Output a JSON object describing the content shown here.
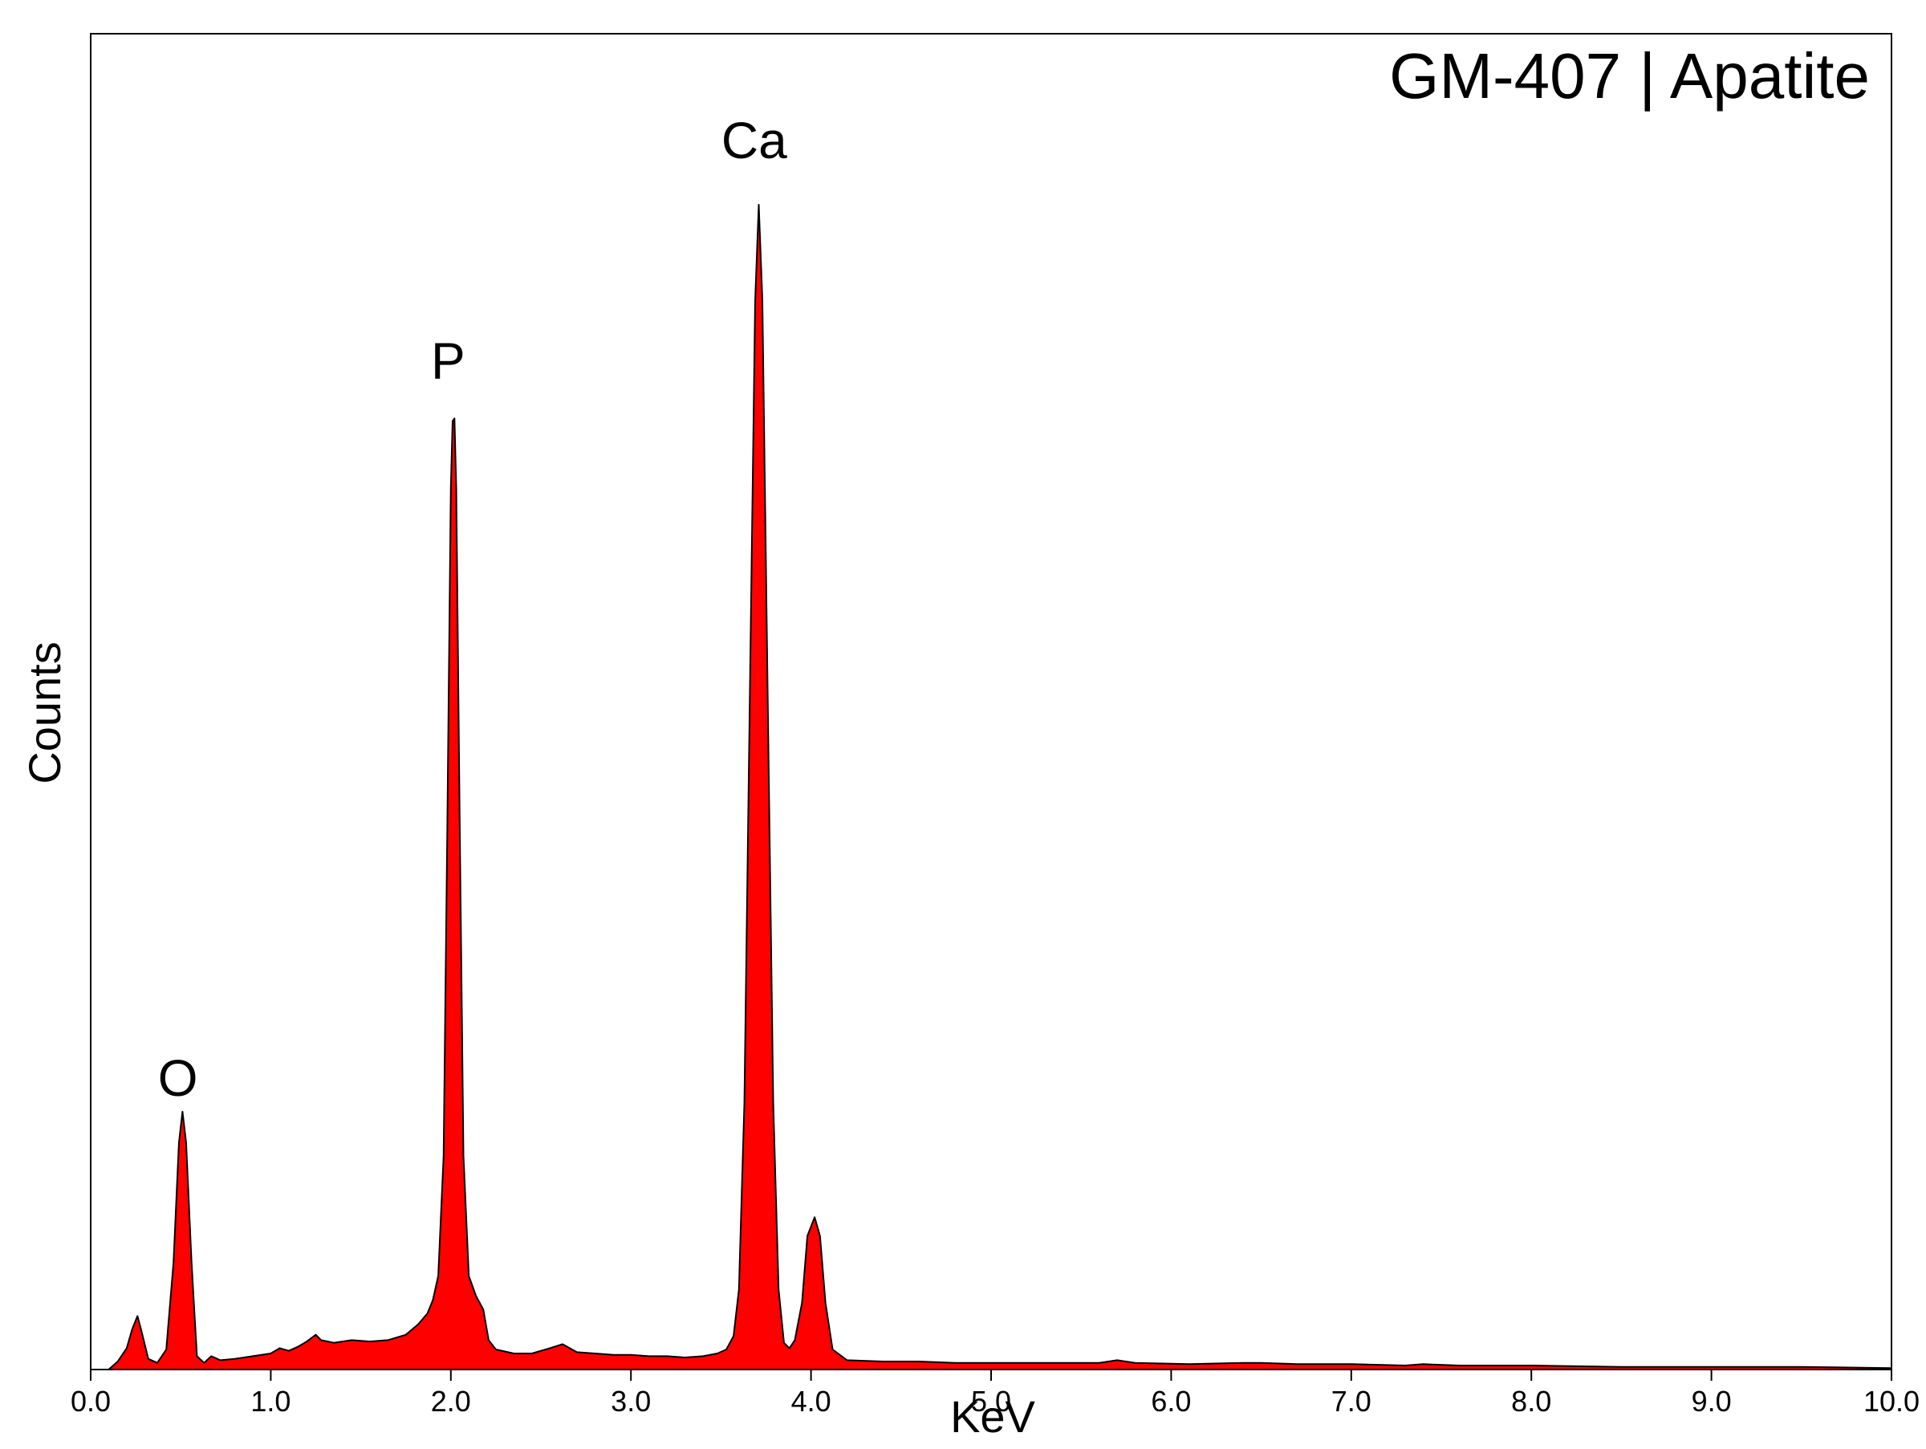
{
  "chart_data": {
    "type": "area",
    "title": "GM-407 | Apatite",
    "xlabel": "KeV",
    "ylabel": "Counts",
    "xlim": [
      0,
      10
    ],
    "ylim": [
      0,
      1000
    ],
    "x_ticks": [
      "0.0",
      "1.0",
      "2.0",
      "3.0",
      "4.0",
      "5.0",
      "6.0",
      "7.0",
      "8.0",
      "9.0",
      "10.0"
    ],
    "y_tick_labels_shown": false,
    "grid": false,
    "fill_color": "#ff0000",
    "line_color": "#000000",
    "peak_labels": [
      {
        "text": "O",
        "x": 0.52,
        "y": 205
      },
      {
        "text": "P",
        "x": 2.02,
        "y": 742
      },
      {
        "text": "Ca",
        "x": 3.72,
        "y": 907
      }
    ],
    "series": [
      {
        "points": [
          [
            0.1,
            0
          ],
          [
            0.15,
            6
          ],
          [
            0.2,
            16
          ],
          [
            0.23,
            30
          ],
          [
            0.26,
            40
          ],
          [
            0.28,
            30
          ],
          [
            0.32,
            8
          ],
          [
            0.37,
            5
          ],
          [
            0.42,
            15
          ],
          [
            0.46,
            80
          ],
          [
            0.49,
            170
          ],
          [
            0.51,
            193
          ],
          [
            0.53,
            170
          ],
          [
            0.56,
            80
          ],
          [
            0.59,
            10
          ],
          [
            0.63,
            5
          ],
          [
            0.67,
            10
          ],
          [
            0.72,
            7
          ],
          [
            0.8,
            8
          ],
          [
            0.9,
            10
          ],
          [
            1.0,
            12
          ],
          [
            1.05,
            16
          ],
          [
            1.1,
            14
          ],
          [
            1.15,
            17
          ],
          [
            1.2,
            21
          ],
          [
            1.25,
            26
          ],
          [
            1.28,
            22
          ],
          [
            1.35,
            20
          ],
          [
            1.45,
            22
          ],
          [
            1.55,
            21
          ],
          [
            1.65,
            22
          ],
          [
            1.75,
            26
          ],
          [
            1.82,
            34
          ],
          [
            1.87,
            42
          ],
          [
            1.9,
            52
          ],
          [
            1.93,
            70
          ],
          [
            1.96,
            160
          ],
          [
            1.98,
            400
          ],
          [
            2.0,
            660
          ],
          [
            2.01,
            710
          ],
          [
            2.02,
            712
          ],
          [
            2.03,
            660
          ],
          [
            2.05,
            400
          ],
          [
            2.07,
            160
          ],
          [
            2.1,
            70
          ],
          [
            2.14,
            55
          ],
          [
            2.18,
            45
          ],
          [
            2.21,
            22
          ],
          [
            2.25,
            15
          ],
          [
            2.35,
            12
          ],
          [
            2.45,
            12
          ],
          [
            2.55,
            16
          ],
          [
            2.62,
            19
          ],
          [
            2.7,
            13
          ],
          [
            2.8,
            12
          ],
          [
            2.9,
            11
          ],
          [
            3.0,
            11
          ],
          [
            3.1,
            10
          ],
          [
            3.2,
            10
          ],
          [
            3.3,
            9
          ],
          [
            3.4,
            10
          ],
          [
            3.48,
            12
          ],
          [
            3.53,
            15
          ],
          [
            3.57,
            25
          ],
          [
            3.6,
            60
          ],
          [
            3.63,
            200
          ],
          [
            3.66,
            500
          ],
          [
            3.69,
            800
          ],
          [
            3.71,
            872
          ],
          [
            3.73,
            800
          ],
          [
            3.76,
            500
          ],
          [
            3.79,
            200
          ],
          [
            3.82,
            60
          ],
          [
            3.85,
            20
          ],
          [
            3.88,
            16
          ],
          [
            3.91,
            22
          ],
          [
            3.95,
            50
          ],
          [
            3.98,
            100
          ],
          [
            4.02,
            114
          ],
          [
            4.05,
            100
          ],
          [
            4.08,
            50
          ],
          [
            4.12,
            15
          ],
          [
            4.2,
            7
          ],
          [
            4.4,
            6
          ],
          [
            4.6,
            6
          ],
          [
            4.8,
            5
          ],
          [
            5.0,
            5
          ],
          [
            5.3,
            5
          ],
          [
            5.6,
            5
          ],
          [
            5.7,
            7
          ],
          [
            5.8,
            5
          ],
          [
            6.1,
            4
          ],
          [
            6.4,
            5
          ],
          [
            6.5,
            5
          ],
          [
            6.7,
            4
          ],
          [
            7.0,
            4
          ],
          [
            7.3,
            3
          ],
          [
            7.4,
            4
          ],
          [
            7.6,
            3
          ],
          [
            8.0,
            3
          ],
          [
            8.5,
            2
          ],
          [
            9.0,
            2
          ],
          [
            9.5,
            2
          ],
          [
            10.0,
            1
          ]
        ]
      }
    ]
  }
}
